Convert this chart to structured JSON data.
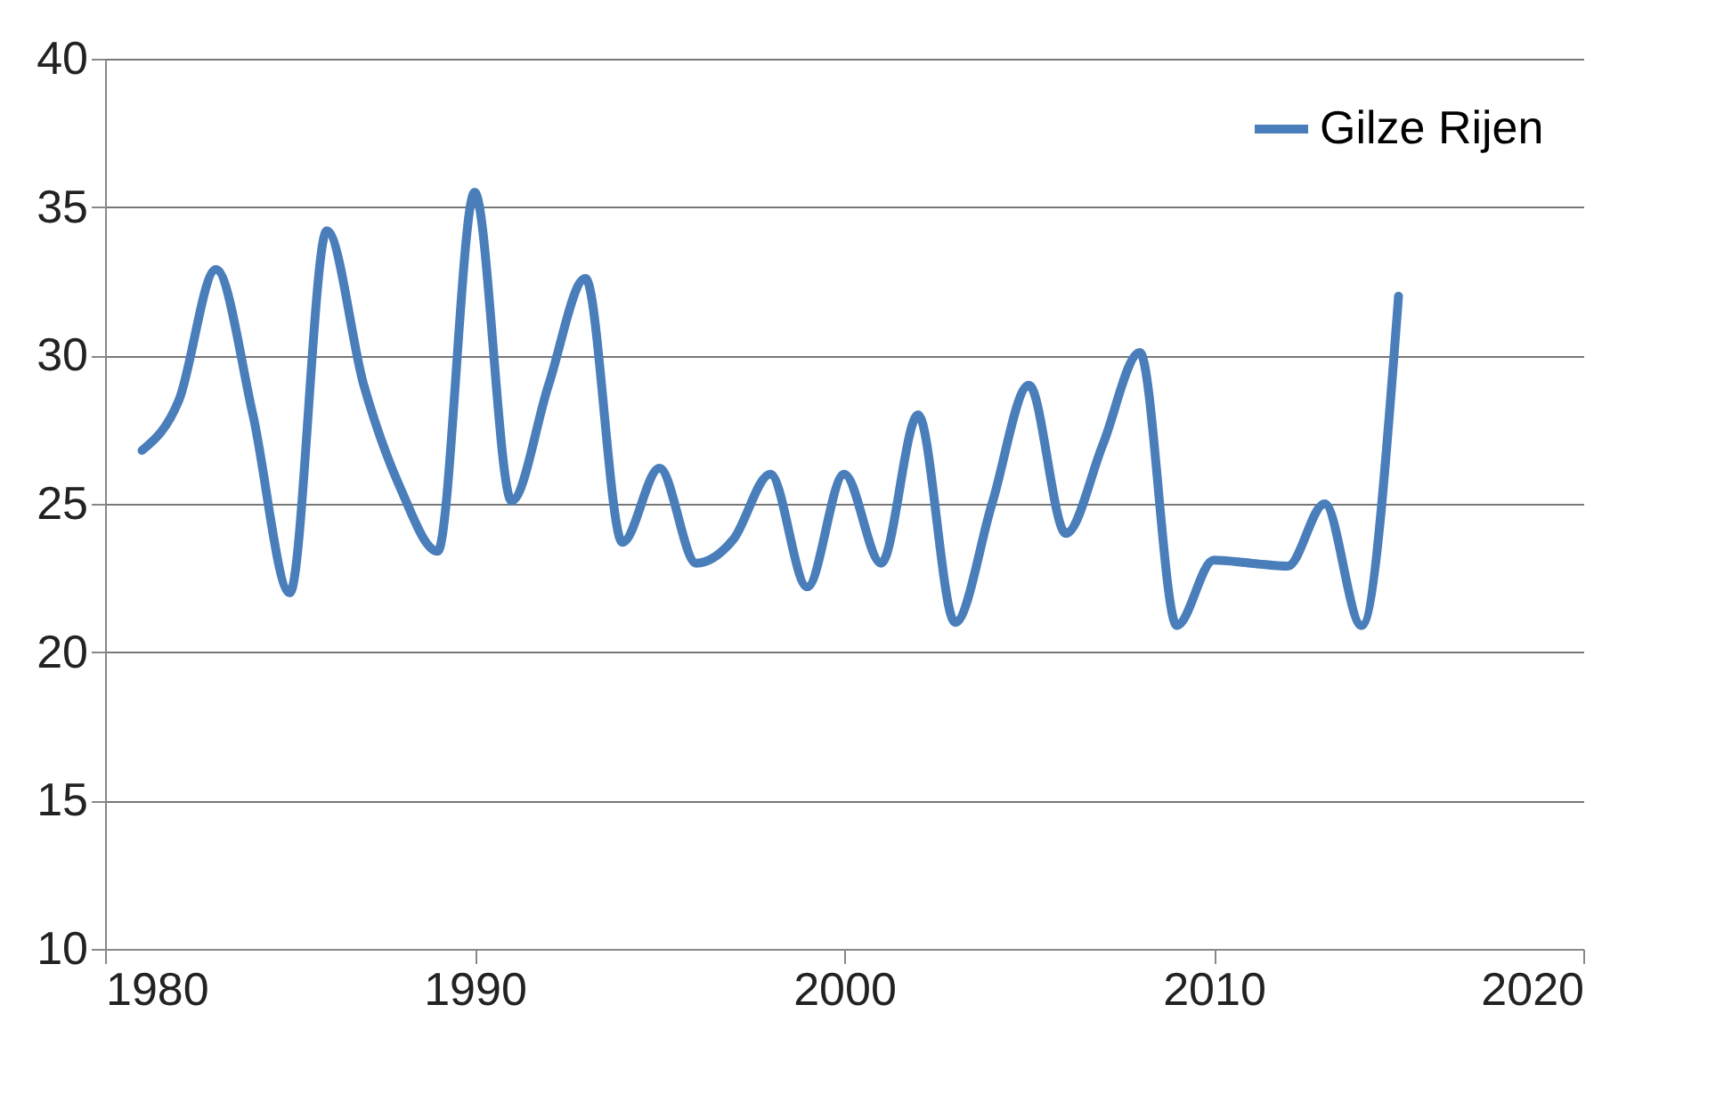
{
  "chart_data": {
    "type": "line",
    "x": [
      1981,
      1982,
      1983,
      1984,
      1985,
      1986,
      1987,
      1988,
      1989,
      1990,
      1991,
      1992,
      1993,
      1994,
      1995,
      1996,
      1997,
      1998,
      1999,
      2000,
      2001,
      2002,
      2003,
      2004,
      2005,
      2006,
      2007,
      2008,
      2009,
      2010,
      2011,
      2012,
      2013,
      2014,
      2015
    ],
    "series": [
      {
        "name": "Gilze Rijen",
        "color": "#4a7ebb",
        "values": [
          26.8,
          28.5,
          32.9,
          28,
          22,
          34.2,
          29,
          25.5,
          23.4,
          35.5,
          25.1,
          29,
          32.6,
          23.7,
          26.2,
          23,
          23.8,
          26,
          22.2,
          26,
          23,
          28,
          21,
          25,
          29,
          24,
          27,
          30.1,
          20.9,
          23.1,
          23,
          22.9,
          25,
          20.9,
          32
        ]
      }
    ],
    "xlim": [
      1980,
      2020
    ],
    "xticks": [
      1980,
      1990,
      2000,
      2010,
      2020
    ],
    "ylim": [
      10,
      40
    ],
    "yticks": [
      10,
      15,
      20,
      25,
      30,
      35,
      40
    ],
    "grid": "y",
    "legend": "top right",
    "marker": "none",
    "line_style": "solid"
  }
}
